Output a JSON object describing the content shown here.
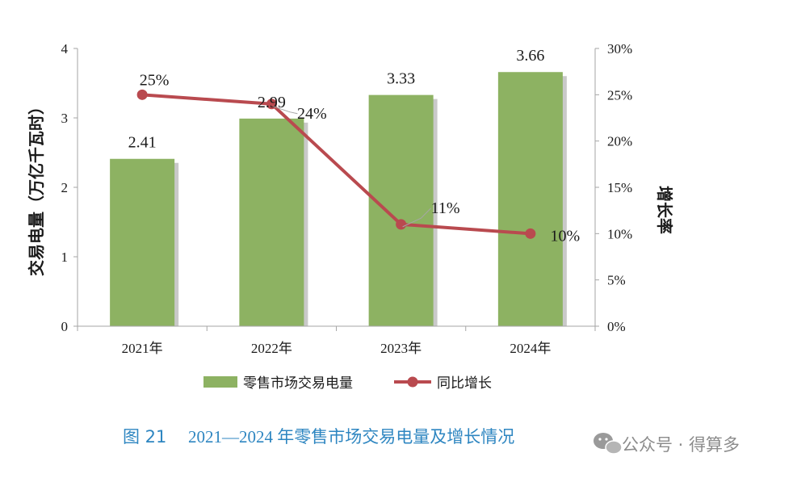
{
  "chart_data": {
    "type": "bar",
    "categories": [
      "2021年",
      "2022年",
      "2023年",
      "2024年"
    ],
    "series": [
      {
        "name": "零售市场交易电量",
        "type": "bar",
        "axis": "left",
        "values": [
          2.41,
          2.99,
          3.33,
          3.66
        ],
        "labels": [
          "2.41",
          "2.99",
          "3.33",
          "3.66"
        ]
      },
      {
        "name": "同比增长",
        "type": "line",
        "axis": "right",
        "values": [
          25,
          24,
          11,
          10
        ],
        "labels": [
          "25%",
          "24%",
          "11%",
          "10%"
        ]
      }
    ],
    "ylabel": "交易电量（万亿千瓦时）",
    "y2label": "增长率",
    "ylim": [
      0,
      4
    ],
    "y2lim": [
      0,
      30
    ],
    "yticks": [
      "0",
      "1",
      "2",
      "3",
      "4"
    ],
    "y2ticks": [
      "0%",
      "5%",
      "10%",
      "15%",
      "20%",
      "25%",
      "30%"
    ],
    "legend_position": "bottom-center",
    "grid": false
  },
  "caption": {
    "figure_no": "图 21",
    "text": "2021—2024 年零售市场交易电量及增长情况"
  },
  "watermark": {
    "text": "公众号 · 得算多"
  },
  "colors": {
    "bar": "#8DB262",
    "bar_shadow": "#C9C9C9",
    "line": "#B94A4F",
    "caption": "#2E86C1",
    "axis": "#A6A6A6",
    "text": "#1a1a1a",
    "leader": "#A6A6A6"
  },
  "icons": [
    "wechat-icon"
  ]
}
